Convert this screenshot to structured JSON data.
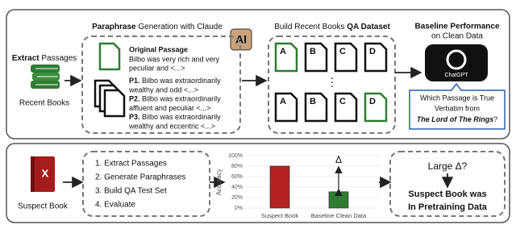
{
  "extract": {
    "bold": "Extract",
    "rest": "Passages",
    "books": "Recent Books"
  },
  "paraphrase": {
    "bold": "Paraphrase",
    "rest": "Generation with Claude",
    "icon": "AI",
    "original_title": "Original Passage",
    "original": [
      "Bilbo was very rich and very",
      "peculiar and <...>"
    ],
    "items": [
      {
        "tag": "P1.",
        "lines": [
          "Bilbo was extraordinarily",
          "wealthy and odd <...>"
        ]
      },
      {
        "tag": "P2.",
        "lines": [
          "Bilbo was extraordinarily",
          "affluent and peculiar <...>"
        ]
      },
      {
        "tag": "P3.",
        "lines": [
          "Bilbo was extraordinarily",
          "wealthy and eccentric <...>"
        ]
      }
    ]
  },
  "qa": {
    "rest": "Build Recent Books",
    "bold": "QA Dataset",
    "top": [
      "A",
      "B",
      "C",
      "D"
    ],
    "bottom": [
      "A",
      "B",
      "C",
      "D"
    ],
    "dots": "⋮"
  },
  "baseline": {
    "title": "Baseline Performance",
    "subtitle": "on Clean Data",
    "logo": "ChatGPT",
    "question": [
      "Which Passage is True",
      "Verbatim from"
    ],
    "book": "The Lord of The Rings",
    "mark": "?"
  },
  "suspect": {
    "label": "Suspect Book",
    "icon": "X"
  },
  "steps": [
    "1. Extract Passages",
    "2. Generate Paraphrases",
    "3. Build QA Test Set",
    "4. Evaluate"
  ],
  "chart": {
    "type": "bar",
    "ylabel": "Accuracy",
    "categories": [
      "Suspect Book",
      "Baseline Clean Data"
    ],
    "values": [
      80,
      31
    ],
    "colors": [
      "#b22222",
      "#2e7d32"
    ],
    "delta": "Δ",
    "ylim": [
      0,
      100
    ],
    "yticks": [
      {
        "value": 0,
        "label": "0%"
      },
      {
        "value": 20,
        "label": "20%"
      },
      {
        "value": 40,
        "label": "40%"
      },
      {
        "value": 60,
        "label": "60%"
      },
      {
        "value": 80,
        "label": "80%"
      },
      {
        "value": 100,
        "label": "100%"
      }
    ]
  },
  "conclusion": {
    "question": "Large Δ?",
    "lines": [
      "Suspect Book was",
      "In Pretraining Data"
    ]
  }
}
